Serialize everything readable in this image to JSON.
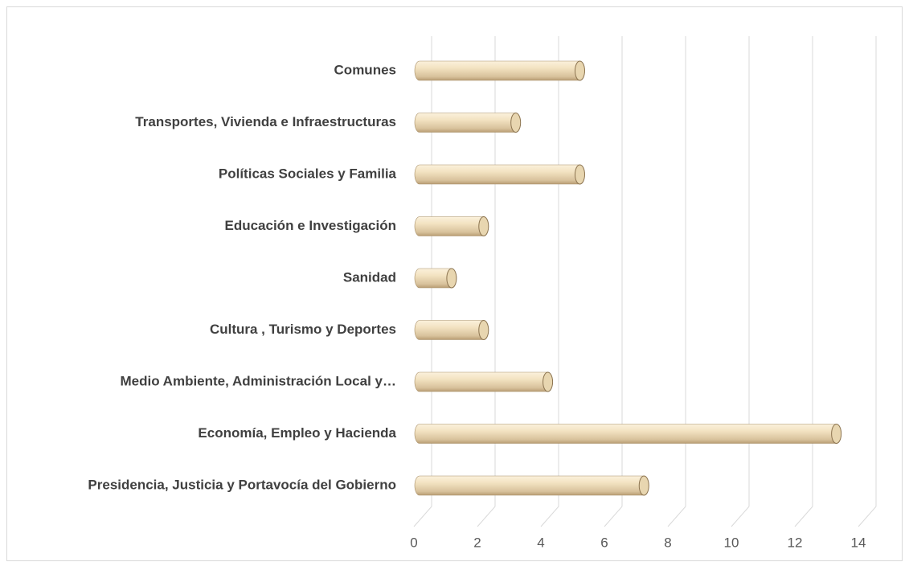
{
  "chart_data": {
    "type": "bar",
    "orientation": "horizontal",
    "categories": [
      "Presidencia, Justicia y Portavocía del Gobierno",
      "Economía, Empleo y Hacienda",
      "Medio Ambiente, Administración Local y…",
      "Cultura , Turismo y Deportes",
      "Sanidad",
      "Educación e Investigación",
      "Políticas Sociales y Familia",
      "Transportes, Vivienda e Infraestructuras",
      "Comunes"
    ],
    "values": [
      7,
      13,
      4,
      2,
      1,
      2,
      5,
      3,
      5
    ],
    "color": "#e8d6b0",
    "xlim": [
      0,
      14
    ],
    "xticks": [
      0,
      2,
      4,
      6,
      8,
      10,
      12,
      14
    ],
    "grid": true
  }
}
